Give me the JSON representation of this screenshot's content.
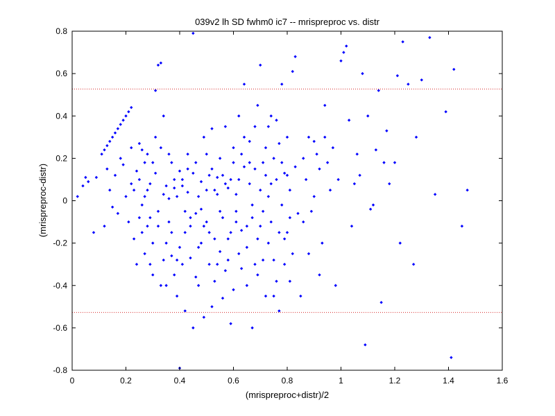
{
  "chart_data": {
    "type": "scatter",
    "title": "039v2 lh SD fwhm0 ic7 -- mrispreproc vs. distr",
    "xlabel": "(mrispreproc+distr)/2",
    "ylabel": "(mrispreproc-distr)",
    "xlim": [
      0,
      1.6
    ],
    "ylim": [
      -0.8,
      0.8
    ],
    "xticks": [
      "0",
      "0.2",
      "0.4",
      "0.6",
      "0.8",
      "1",
      "1.2",
      "1.4",
      "1.6"
    ],
    "yticks": [
      "-0.8",
      "-0.6",
      "-0.4",
      "-0.2",
      "0",
      "0.2",
      "0.4",
      "0.6",
      "0.8"
    ],
    "grid": false,
    "reference_lines": [
      0.527,
      -0.527
    ],
    "colors": {
      "points": "#0000ff",
      "reference_lines": "#d62728",
      "axes": "#000000"
    },
    "series": [
      {
        "points": [
          [
            0.02,
            0.02
          ],
          [
            0.04,
            0.07
          ],
          [
            0.05,
            0.11
          ],
          [
            0.06,
            0.09
          ],
          [
            0.08,
            -0.15
          ],
          [
            0.09,
            0.11
          ],
          [
            0.11,
            0.22
          ],
          [
            0.12,
            0.24
          ],
          [
            0.13,
            0.26
          ],
          [
            0.14,
            0.28
          ],
          [
            0.15,
            0.3
          ],
          [
            0.16,
            0.32
          ],
          [
            0.17,
            0.34
          ],
          [
            0.18,
            0.36
          ],
          [
            0.19,
            0.38
          ],
          [
            0.2,
            0.4
          ],
          [
            0.21,
            0.42
          ],
          [
            0.22,
            0.44
          ],
          [
            0.12,
            -0.12
          ],
          [
            0.13,
            0.15
          ],
          [
            0.14,
            0.05
          ],
          [
            0.15,
            -0.03
          ],
          [
            0.16,
            0.12
          ],
          [
            0.17,
            -0.06
          ],
          [
            0.18,
            0.2
          ],
          [
            0.19,
            0.17
          ],
          [
            0.2,
            0.02
          ],
          [
            0.21,
            -0.1
          ],
          [
            0.22,
            0.08
          ],
          [
            0.23,
            -0.18
          ],
          [
            0.24,
            0.14
          ],
          [
            0.25,
            -0.08
          ],
          [
            0.26,
            0.24
          ],
          [
            0.27,
            -0.25
          ],
          [
            0.28,
            0.05
          ],
          [
            0.29,
            -0.3
          ],
          [
            0.3,
            0.18
          ],
          [
            0.31,
            0.52
          ],
          [
            0.32,
            0.64
          ],
          [
            0.33,
            0.65
          ],
          [
            0.34,
            0.03
          ],
          [
            0.35,
            -0.4
          ],
          [
            0.36,
            0.22
          ],
          [
            0.37,
            -0.15
          ],
          [
            0.38,
            0.1
          ],
          [
            0.39,
            -0.28
          ],
          [
            0.4,
            -0.79
          ],
          [
            0.41,
            0.07
          ],
          [
            0.42,
            -0.05
          ],
          [
            0.43,
            0.15
          ],
          [
            0.44,
            -0.12
          ],
          [
            0.45,
            0.79
          ],
          [
            0.46,
            -0.36
          ],
          [
            0.47,
            0.02
          ],
          [
            0.48,
            -0.2
          ],
          [
            0.49,
            0.3
          ],
          [
            0.5,
            -0.1
          ],
          [
            0.51,
            0.12
          ],
          [
            0.52,
            -0.5
          ],
          [
            0.53,
            0.05
          ],
          [
            0.54,
            -0.3
          ],
          [
            0.55,
            0.2
          ],
          [
            0.56,
            -0.08
          ],
          [
            0.57,
            0.35
          ],
          [
            0.58,
            -0.18
          ],
          [
            0.59,
            0.1
          ],
          [
            0.6,
            -0.42
          ],
          [
            0.61,
            0.03
          ],
          [
            0.62,
            -0.25
          ],
          [
            0.63,
            0.22
          ],
          [
            0.64,
            0.55
          ],
          [
            0.65,
            -0.12
          ],
          [
            0.66,
            0.08
          ],
          [
            0.67,
            -0.6
          ],
          [
            0.68,
            0.15
          ],
          [
            0.69,
            -0.35
          ],
          [
            0.7,
            0.64
          ],
          [
            0.71,
            -0.05
          ],
          [
            0.72,
            0.25
          ],
          [
            0.73,
            -0.2
          ],
          [
            0.74,
            0.4
          ],
          [
            0.75,
            -0.45
          ],
          [
            0.76,
            0.1
          ],
          [
            0.77,
            -0.15
          ],
          [
            0.78,
            0.55
          ],
          [
            0.79,
            -0.3
          ],
          [
            0.8,
            0.3
          ],
          [
            0.81,
            -0.08
          ],
          [
            0.82,
            0.61
          ],
          [
            0.83,
            0.68
          ],
          [
            0.85,
            -0.45
          ],
          [
            0.86,
            0.2
          ],
          [
            0.88,
            -0.25
          ],
          [
            0.9,
            0.28
          ],
          [
            0.92,
            -0.35
          ],
          [
            0.94,
            0.45
          ],
          [
            0.96,
            0.05
          ],
          [
            0.98,
            -0.4
          ],
          [
            1.0,
            0.66
          ],
          [
            1.01,
            0.7
          ],
          [
            1.02,
            0.73
          ],
          [
            1.04,
            -0.12
          ],
          [
            1.06,
            0.22
          ],
          [
            1.08,
            0.6
          ],
          [
            1.09,
            -0.68
          ],
          [
            1.1,
            0.4
          ],
          [
            1.12,
            -0.02
          ],
          [
            1.14,
            0.52
          ],
          [
            1.15,
            -0.48
          ],
          [
            1.17,
            0.33
          ],
          [
            1.2,
            0.18
          ],
          [
            1.21,
            0.59
          ],
          [
            1.23,
            0.75
          ],
          [
            1.25,
            0.55
          ],
          [
            1.27,
            -0.3
          ],
          [
            1.28,
            0.3
          ],
          [
            1.3,
            0.57
          ],
          [
            1.33,
            0.77
          ],
          [
            1.35,
            0.03
          ],
          [
            1.39,
            0.42
          ],
          [
            1.41,
            -0.74
          ],
          [
            1.42,
            0.62
          ],
          [
            1.45,
            -0.12
          ],
          [
            1.47,
            0.05
          ],
          [
            0.25,
            0.1
          ],
          [
            0.26,
            -0.02
          ],
          [
            0.27,
            0.18
          ],
          [
            0.28,
            -0.12
          ],
          [
            0.29,
            0.08
          ],
          [
            0.3,
            -0.2
          ],
          [
            0.31,
            0.13
          ],
          [
            0.32,
            -0.05
          ],
          [
            0.33,
            0.25
          ],
          [
            0.34,
            -0.28
          ],
          [
            0.35,
            0.07
          ],
          [
            0.36,
            -0.1
          ],
          [
            0.37,
            0.18
          ],
          [
            0.38,
            -0.35
          ],
          [
            0.39,
            0.02
          ],
          [
            0.4,
            -0.22
          ],
          [
            0.41,
            0.1
          ],
          [
            0.42,
            -0.15
          ],
          [
            0.43,
            0.04
          ],
          [
            0.44,
            -0.27
          ],
          [
            0.45,
            0.13
          ],
          [
            0.46,
            -0.06
          ],
          [
            0.47,
            -0.4
          ],
          [
            0.48,
            0.09
          ],
          [
            0.49,
            -0.12
          ],
          [
            0.5,
            0.22
          ],
          [
            0.51,
            -0.3
          ],
          [
            0.52,
            0.15
          ],
          [
            0.53,
            -0.18
          ],
          [
            0.54,
            0.03
          ],
          [
            0.55,
            -0.24
          ],
          [
            0.56,
            0.12
          ],
          [
            0.57,
            -0.33
          ],
          [
            0.58,
            0.06
          ],
          [
            0.59,
            -0.15
          ],
          [
            0.6,
            0.25
          ],
          [
            0.61,
            -0.05
          ],
          [
            0.62,
            0.1
          ],
          [
            0.63,
            -0.32
          ],
          [
            0.64,
            0.16
          ],
          [
            0.65,
            -0.22
          ],
          [
            0.66,
            0.28
          ],
          [
            0.67,
            -0.08
          ],
          [
            0.68,
            0.35
          ],
          [
            0.69,
            -0.18
          ],
          [
            0.7,
            0.05
          ],
          [
            0.71,
            -0.28
          ],
          [
            0.72,
            0.12
          ],
          [
            0.73,
            0.02
          ],
          [
            0.74,
            -0.1
          ],
          [
            0.75,
            0.2
          ],
          [
            0.76,
            -0.38
          ],
          [
            0.77,
            0.27
          ],
          [
            0.78,
            -0.02
          ],
          [
            0.79,
            0.13
          ],
          [
            0.8,
            -0.15
          ],
          [
            0.81,
            0.05
          ],
          [
            0.82,
            -0.25
          ],
          [
            0.83,
            0.16
          ],
          [
            0.84,
            -0.06
          ],
          [
            0.22,
            0.25
          ],
          [
            0.23,
            0.05
          ],
          [
            0.24,
            -0.3
          ],
          [
            0.25,
            0.27
          ],
          [
            0.26,
            -0.15
          ],
          [
            0.27,
            0.02
          ],
          [
            0.28,
            0.22
          ],
          [
            0.29,
            -0.08
          ],
          [
            0.3,
            -0.35
          ],
          [
            0.31,
            0.3
          ],
          [
            0.32,
            -0.12
          ],
          [
            0.33,
            -0.4
          ],
          [
            0.34,
            0.4
          ],
          [
            0.35,
            -0.2
          ],
          [
            0.36,
            0.01
          ],
          [
            0.37,
            -0.26
          ],
          [
            0.38,
            0.06
          ],
          [
            0.39,
            -0.45
          ],
          [
            0.4,
            0.14
          ],
          [
            0.41,
            -0.3
          ],
          [
            0.42,
            -0.52
          ],
          [
            0.43,
            0.22
          ],
          [
            0.44,
            -0.08
          ],
          [
            0.45,
            -0.6
          ],
          [
            0.46,
            0.18
          ],
          [
            0.47,
            -0.22
          ],
          [
            0.48,
            -0.04
          ],
          [
            0.49,
            -0.55
          ],
          [
            0.5,
            0.05
          ],
          [
            0.51,
            -0.15
          ],
          [
            0.52,
            0.34
          ],
          [
            0.53,
            -0.38
          ],
          [
            0.54,
            0.11
          ],
          [
            0.55,
            -0.05
          ],
          [
            0.56,
            -0.46
          ],
          [
            0.57,
            0.08
          ],
          [
            0.58,
            -0.28
          ],
          [
            0.59,
            -0.58
          ],
          [
            0.6,
            0.18
          ],
          [
            0.61,
            -0.1
          ],
          [
            0.62,
            0.4
          ],
          [
            0.63,
            -0.14
          ],
          [
            0.64,
            0.3
          ],
          [
            0.65,
            -0.4
          ],
          [
            0.66,
            0.18
          ],
          [
            0.67,
            -0.02
          ],
          [
            0.68,
            -0.3
          ],
          [
            0.69,
            0.45
          ],
          [
            0.7,
            -0.12
          ],
          [
            0.71,
            0.18
          ],
          [
            0.72,
            -0.45
          ],
          [
            0.73,
            0.35
          ],
          [
            0.74,
            0.08
          ],
          [
            0.75,
            -0.28
          ],
          [
            0.76,
            0.38
          ],
          [
            0.77,
            -0.52
          ],
          [
            0.78,
            0.18
          ],
          [
            0.79,
            -0.18
          ],
          [
            0.8,
            0.12
          ],
          [
            0.81,
            -0.38
          ],
          [
            0.86,
            -0.1
          ],
          [
            0.87,
            0.1
          ],
          [
            0.88,
            0.3
          ],
          [
            0.89,
            -0.05
          ],
          [
            0.9,
            0.02
          ],
          [
            0.91,
            0.22
          ],
          [
            0.92,
            0.15
          ],
          [
            0.93,
            -0.2
          ],
          [
            0.94,
            0.3
          ],
          [
            0.95,
            0.18
          ],
          [
            0.97,
            0.25
          ],
          [
            0.99,
            0.1
          ],
          [
            1.03,
            0.38
          ],
          [
            1.05,
            0.08
          ],
          [
            1.07,
            0.12
          ],
          [
            1.11,
            -0.04
          ],
          [
            1.13,
            0.24
          ],
          [
            1.16,
            0.18
          ],
          [
            1.18,
            0.08
          ],
          [
            1.22,
            -0.2
          ]
        ]
      }
    ]
  }
}
